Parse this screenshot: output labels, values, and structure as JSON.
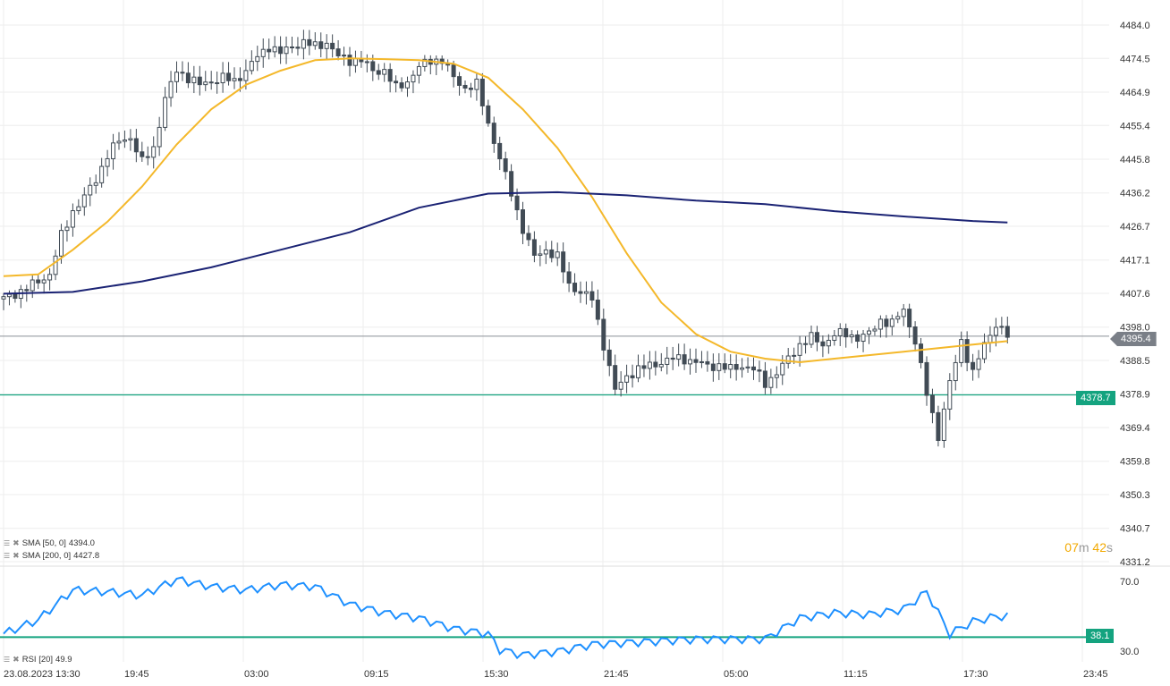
{
  "colors": {
    "candle": "#414b55",
    "sma50": "#f4b82a",
    "sma200": "#1b2374",
    "rsi": "#1e90ff",
    "hline": "#14a37f",
    "grid": "#eeeeee",
    "timer_minutes": "#f2a900"
  },
  "chart_data": {
    "type": "candlestick",
    "y_ticks": [
      "4484.0",
      "4474.5",
      "4464.9",
      "4455.4",
      "4445.8",
      "4436.2",
      "4426.7",
      "4417.1",
      "4407.6",
      "4398.0",
      "4388.5",
      "4378.9",
      "4369.4",
      "4359.8",
      "4350.3",
      "4340.7",
      "4331.2"
    ],
    "ylim": [
      4331.2,
      4484.0
    ],
    "x_ticks": [
      "23.08.2023 13:30",
      "19:45",
      "03:00",
      "09:15",
      "15:30",
      "21:45",
      "05:00",
      "11:15",
      "17:30",
      "23:45"
    ],
    "current_price": "4395.4",
    "horizontal_line": "4378.7",
    "close_path": [
      [
        0,
        4406
      ],
      [
        4,
        4409
      ],
      [
        8,
        4413
      ],
      [
        10,
        4424
      ],
      [
        12,
        4431
      ],
      [
        14,
        4435
      ],
      [
        16,
        4440
      ],
      [
        18,
        4447
      ],
      [
        20,
        4451
      ],
      [
        22,
        4452
      ],
      [
        24,
        4445
      ],
      [
        26,
        4449
      ],
      [
        28,
        4463
      ],
      [
        30,
        4471
      ],
      [
        32,
        4469
      ],
      [
        34,
        4467
      ],
      [
        36,
        4468
      ],
      [
        38,
        4469
      ],
      [
        40,
        4468
      ],
      [
        42,
        4471
      ],
      [
        44,
        4475
      ],
      [
        46,
        4478
      ],
      [
        48,
        4476
      ],
      [
        50,
        4478
      ],
      [
        52,
        4479
      ],
      [
        54,
        4478
      ],
      [
        56,
        4479
      ],
      [
        58,
        4475
      ],
      [
        60,
        4474
      ],
      [
        62,
        4474
      ],
      [
        64,
        4471
      ],
      [
        66,
        4471
      ],
      [
        68,
        4466
      ],
      [
        70,
        4468
      ],
      [
        72,
        4472
      ],
      [
        74,
        4474
      ],
      [
        76,
        4474
      ],
      [
        78,
        4469
      ],
      [
        80,
        4466
      ],
      [
        82,
        4467
      ],
      [
        84,
        4456
      ],
      [
        86,
        4446
      ],
      [
        88,
        4436
      ],
      [
        90,
        4426
      ],
      [
        92,
        4418
      ],
      [
        94,
        4420
      ],
      [
        96,
        4418
      ],
      [
        98,
        4410
      ],
      [
        100,
        4408
      ],
      [
        102,
        4406
      ],
      [
        104,
        4393
      ],
      [
        106,
        4380
      ],
      [
        108,
        4384
      ],
      [
        110,
        4386
      ],
      [
        112,
        4387
      ],
      [
        114,
        4388
      ],
      [
        116,
        4389
      ],
      [
        118,
        4389
      ],
      [
        120,
        4388
      ],
      [
        122,
        4387
      ],
      [
        124,
        4387
      ],
      [
        126,
        4386
      ],
      [
        128,
        4387
      ],
      [
        130,
        4386
      ],
      [
        132,
        4382
      ],
      [
        134,
        4385
      ],
      [
        136,
        4389
      ],
      [
        138,
        4393
      ],
      [
        140,
        4395
      ],
      [
        142,
        4393
      ],
      [
        144,
        4396
      ],
      [
        146,
        4396
      ],
      [
        148,
        4395
      ],
      [
        150,
        4396
      ],
      [
        152,
        4400
      ],
      [
        154,
        4399
      ],
      [
        156,
        4403
      ],
      [
        158,
        4394
      ],
      [
        160,
        4379
      ],
      [
        162,
        4367
      ],
      [
        164,
        4382
      ],
      [
        166,
        4394
      ],
      [
        168,
        4385
      ],
      [
        170,
        4393
      ],
      [
        172,
        4399
      ],
      [
        174,
        4395.4
      ]
    ],
    "series": [
      {
        "name": "SMA (50, 0)",
        "value": "4394.0",
        "points": [
          [
            0,
            4412.5
          ],
          [
            6,
            4413
          ],
          [
            12,
            4420
          ],
          [
            18,
            4428
          ],
          [
            24,
            4438
          ],
          [
            30,
            4450
          ],
          [
            36,
            4460
          ],
          [
            42,
            4467
          ],
          [
            48,
            4471
          ],
          [
            54,
            4474
          ],
          [
            60,
            4474.5
          ],
          [
            66,
            4474.3
          ],
          [
            72,
            4474
          ],
          [
            78,
            4473
          ],
          [
            84,
            4469
          ],
          [
            90,
            4460
          ],
          [
            96,
            4449
          ],
          [
            102,
            4435
          ],
          [
            108,
            4419
          ],
          [
            114,
            4405
          ],
          [
            120,
            4396
          ],
          [
            126,
            4391
          ],
          [
            132,
            4389
          ],
          [
            138,
            4388
          ],
          [
            144,
            4389
          ],
          [
            150,
            4390
          ],
          [
            156,
            4391
          ],
          [
            162,
            4392
          ],
          [
            168,
            4393
          ],
          [
            174,
            4394
          ]
        ]
      },
      {
        "name": "SMA (200, 0)",
        "value": "4427.8",
        "points": [
          [
            0,
            4407.5
          ],
          [
            12,
            4408
          ],
          [
            24,
            4411
          ],
          [
            36,
            4415
          ],
          [
            48,
            4420
          ],
          [
            60,
            4425
          ],
          [
            72,
            4432
          ],
          [
            84,
            4436
          ],
          [
            96,
            4436.4
          ],
          [
            108,
            4435.5
          ],
          [
            120,
            4434
          ],
          [
            132,
            4433
          ],
          [
            144,
            4431
          ],
          [
            156,
            4429.5
          ],
          [
            168,
            4428.2
          ],
          [
            174,
            4427.8
          ]
        ]
      }
    ],
    "rsi": {
      "name": "RSI (20)",
      "value": "49.9",
      "ticks": [
        "70.0",
        "30.0"
      ],
      "ylim": [
        24,
        75
      ],
      "horizontal_line": "38.1",
      "points": [
        [
          0,
          40
        ],
        [
          6,
          48
        ],
        [
          12,
          65
        ],
        [
          18,
          64
        ],
        [
          24,
          62
        ],
        [
          30,
          71
        ],
        [
          36,
          67
        ],
        [
          42,
          65
        ],
        [
          48,
          68
        ],
        [
          54,
          67
        ],
        [
          60,
          57
        ],
        [
          66,
          52
        ],
        [
          72,
          49
        ],
        [
          78,
          43
        ],
        [
          84,
          40
        ],
        [
          86,
          31
        ],
        [
          90,
          28
        ],
        [
          96,
          30
        ],
        [
          102,
          34
        ],
        [
          108,
          35
        ],
        [
          114,
          36
        ],
        [
          120,
          37
        ],
        [
          126,
          37
        ],
        [
          132,
          37
        ],
        [
          138,
          49
        ],
        [
          144,
          52
        ],
        [
          150,
          51
        ],
        [
          156,
          54
        ],
        [
          160,
          64
        ],
        [
          164,
          40
        ],
        [
          168,
          47
        ],
        [
          172,
          49.9
        ]
      ]
    }
  },
  "legend": {
    "sma50_label": "SMA [50, 0]",
    "sma50_value": "4394.0",
    "sma200_label": "SMA [200, 0]",
    "sma200_value": "4427.8",
    "rsi_label": "RSI [20]",
    "rsi_value": "49.9"
  },
  "timer": {
    "minutes": "07",
    "minutes_unit": "m",
    "seconds": "42",
    "seconds_unit": "s"
  }
}
